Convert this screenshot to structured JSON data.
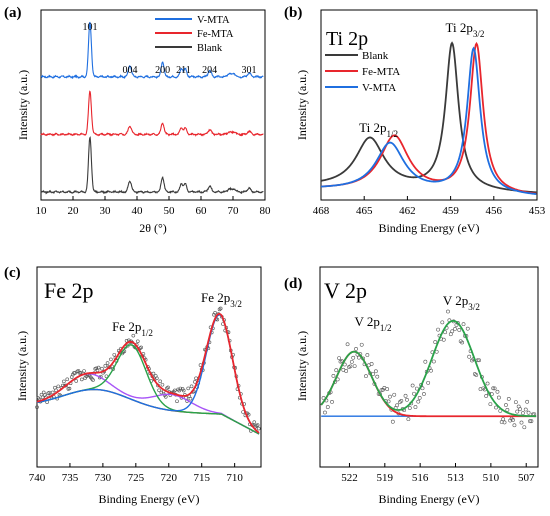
{
  "chart_data": [
    {
      "panel_label": "(a)",
      "type": "line",
      "xlabel": "2θ (°)",
      "ylabel": "Intensity (a.u.)",
      "xlim": [
        10,
        80
      ],
      "xticks": [
        "10",
        "20",
        "30",
        "40",
        "50",
        "60",
        "70",
        "80"
      ],
      "y_ticks_shown": false,
      "legend": {
        "placement": "top-right",
        "entries": [
          "V-MTA",
          "Fe-MTA",
          "Blank"
        ]
      },
      "peak_labels": [
        {
          "x": 25.3,
          "text": "101"
        },
        {
          "x": 37.8,
          "text": "004"
        },
        {
          "x": 48.0,
          "text": "200"
        },
        {
          "x": 54.5,
          "text": "211"
        },
        {
          "x": 62.7,
          "text": "204"
        },
        {
          "x": 75.0,
          "text": "301"
        }
      ],
      "peaks": [
        {
          "x": 25.3,
          "h": 1.0,
          "w": 0.45
        },
        {
          "x": 37.8,
          "h": 0.2,
          "w": 0.5
        },
        {
          "x": 48.0,
          "h": 0.27,
          "w": 0.45
        },
        {
          "x": 53.9,
          "h": 0.15,
          "w": 0.45
        },
        {
          "x": 55.1,
          "h": 0.14,
          "w": 0.45
        },
        {
          "x": 62.7,
          "h": 0.11,
          "w": 0.5
        },
        {
          "x": 68.8,
          "h": 0.06,
          "w": 0.5
        },
        {
          "x": 70.3,
          "h": 0.06,
          "w": 0.5
        },
        {
          "x": 75.0,
          "h": 0.07,
          "w": 0.5
        }
      ],
      "series": [
        {
          "name": "V-MTA",
          "color": "#1f6fe0",
          "offset": 2.0,
          "scale": 0.95
        },
        {
          "name": "Fe-MTA",
          "color": "#e8262d",
          "offset": 1.0,
          "scale": 0.75
        },
        {
          "name": "Blank",
          "color": "#3a3a3a",
          "offset": 0.0,
          "scale": 0.95
        }
      ],
      "ylim": [
        -0.1,
        3.2
      ]
    },
    {
      "panel_label": "(b)",
      "title": "Ti 2p",
      "type": "line",
      "xlabel": "Binding Energy (eV)",
      "ylabel": "Intensity (a.u.)",
      "x_reversed": true,
      "xlim": [
        468,
        453
      ],
      "xticks": [
        "468",
        "465",
        "462",
        "459",
        "456",
        "453"
      ],
      "y_ticks_shown": false,
      "legend": {
        "placement": "top-left",
        "entries": [
          "Blank",
          "Fe-MTA",
          "V-MTA"
        ]
      },
      "annotations": [
        {
          "text": "Ti 2p",
          "sub": "1/2",
          "x": 464.0
        },
        {
          "text": "Ti 2p",
          "sub": "3/2",
          "x": 458.0
        }
      ],
      "ylim": [
        0,
        1.3
      ],
      "series": [
        {
          "name": "Blank",
          "color": "#3a3a3a",
          "peak32": 458.9,
          "peak12": 464.6,
          "h32": 1.0,
          "h12": 0.34,
          "base": 0.04
        },
        {
          "name": "Fe-MTA",
          "color": "#e8262d",
          "peak32": 457.2,
          "peak12": 462.9,
          "h32": 1.02,
          "h12": 0.38,
          "base": 0.02
        },
        {
          "name": "V-MTA",
          "color": "#1f6fe0",
          "peak32": 457.4,
          "peak12": 463.2,
          "h32": 0.99,
          "h12": 0.33,
          "base": 0.02
        }
      ]
    },
    {
      "panel_label": "(c)",
      "title": "Fe 2p",
      "type": "scatter",
      "xlabel": "Binding Energy (eV)",
      "ylabel": "Intensity (a.u.)",
      "x_reversed": true,
      "xlim": [
        740,
        706
      ],
      "xticks": [
        "740",
        "735",
        "730",
        "725",
        "720",
        "715",
        "710"
      ],
      "y_ticks_shown": false,
      "annotations": [
        {
          "text": "Fe 2p",
          "sub": "1/2",
          "x": 725.5
        },
        {
          "text": "Fe 2p",
          "sub": "3/2",
          "x": 712.0
        }
      ],
      "ylim": [
        0,
        1.25
      ],
      "components": [
        {
          "name": "envelope",
          "color": "#e8262d"
        },
        {
          "name": "Fe 2p3/2",
          "color": "#1f6fe0",
          "center": 712.3,
          "height": 0.62,
          "width": 2.0
        },
        {
          "name": "Fe 2p1/2",
          "color": "#2aa24a",
          "center": 725.6,
          "height": 0.34,
          "width": 2.2
        },
        {
          "name": "satellite",
          "color": "#a855f7",
          "center": 719.5,
          "height": 0.1,
          "width": 3.0
        },
        {
          "name": "satellite-2",
          "color": "#a855f7",
          "center": 732.5,
          "height": 0.1,
          "width": 3.0
        },
        {
          "name": "background",
          "color": "#8b5a2b"
        }
      ]
    },
    {
      "panel_label": "(d)",
      "title": "V 2p",
      "type": "scatter",
      "xlabel": "Binding Energy (eV)",
      "ylabel": "Intensity (a.u.)",
      "x_reversed": true,
      "xlim": [
        524.5,
        506
      ],
      "xticks": [
        "522",
        "519",
        "516",
        "513",
        "510",
        "507"
      ],
      "y_ticks_shown": false,
      "annotations": [
        {
          "text": "V 2p",
          "sub": "1/2",
          "x": 520.0
        },
        {
          "text": "V 2p",
          "sub": "3/2",
          "x": 512.5
        }
      ],
      "ylim": [
        0,
        1.3
      ],
      "components": [
        {
          "name": "envelope",
          "color": "#2aa24a"
        },
        {
          "name": "V 2p1/2",
          "color": "#e8262d",
          "center": 521.6,
          "height": 0.42,
          "width": 1.5
        },
        {
          "name": "V 2p3/2",
          "color": "#2aa24a",
          "center": 513.2,
          "height": 0.62,
          "width": 1.8
        },
        {
          "name": "background",
          "color": "#1f6fe0"
        }
      ]
    }
  ]
}
